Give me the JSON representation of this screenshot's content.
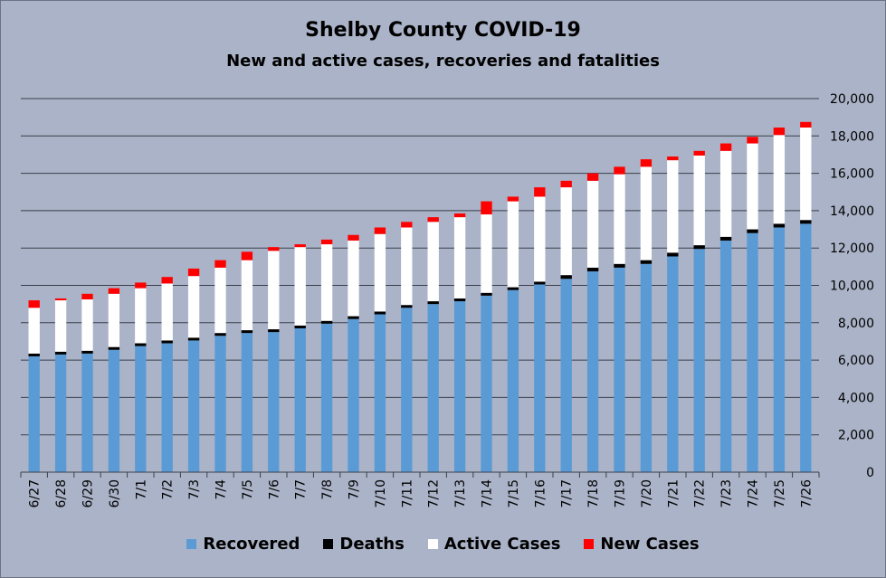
{
  "chart_data": {
    "type": "bar",
    "stacked": true,
    "title": "Shelby County COVID-19",
    "subtitle": "New and active cases, recoveries and fatalities",
    "categories": [
      "6/27",
      "6/28",
      "6/29",
      "6/30",
      "7/1",
      "7/2",
      "7/3",
      "7/4",
      "7/5",
      "7/6",
      "7/7",
      "7/8",
      "7/9",
      "7/10",
      "7/11",
      "7/12",
      "7/13",
      "7/14",
      "7/15",
      "7/16",
      "7/17",
      "7/18",
      "7/19",
      "7/20",
      "7/21",
      "7/22",
      "7/23",
      "7/24",
      "7/25",
      "7/26"
    ],
    "series": [
      {
        "name": "Recovered",
        "color": "#5b9bd5",
        "values": [
          6200,
          6300,
          6350,
          6550,
          6750,
          6900,
          7050,
          7300,
          7450,
          7500,
          7700,
          7950,
          8200,
          8450,
          8800,
          9000,
          9150,
          9450,
          9750,
          10050,
          10350,
          10750,
          10950,
          11150,
          11550,
          11950,
          12400,
          12800,
          13100,
          13300
        ]
      },
      {
        "name": "Deaths",
        "color": "#000000",
        "values": [
          150,
          150,
          150,
          150,
          150,
          150,
          150,
          150,
          150,
          150,
          150,
          150,
          150,
          150,
          150,
          150,
          150,
          150,
          150,
          150,
          200,
          200,
          200,
          200,
          200,
          200,
          200,
          200,
          200,
          200
        ]
      },
      {
        "name": "Active Cases",
        "color": "#ffffff",
        "values": [
          2450,
          2750,
          2750,
          2850,
          2950,
          3050,
          3300,
          3500,
          3750,
          4200,
          4200,
          4100,
          4050,
          4150,
          4150,
          4250,
          4350,
          4200,
          4600,
          4550,
          4700,
          4650,
          4800,
          5000,
          4950,
          4800,
          4600,
          4600,
          4750,
          4950
        ]
      },
      {
        "name": "New Cases",
        "color": "#ff0000",
        "values": [
          400,
          100,
          300,
          300,
          300,
          350,
          400,
          400,
          450,
          200,
          150,
          250,
          300,
          350,
          300,
          250,
          200,
          700,
          250,
          500,
          350,
          400,
          400,
          400,
          200,
          250,
          400,
          350,
          400,
          300
        ]
      }
    ],
    "ylim": [
      0,
      20000
    ],
    "yticks": [
      "0",
      "2,000",
      "4,000",
      "6,000",
      "8,000",
      "10,000",
      "12,000",
      "14,000",
      "16,000",
      "18,000",
      "20,000"
    ],
    "ytick_values": [
      0,
      2000,
      4000,
      6000,
      8000,
      10000,
      12000,
      14000,
      16000,
      18000,
      20000
    ],
    "y_axis_position": "right",
    "grid": "horizontal",
    "legend_position": "bottom"
  }
}
